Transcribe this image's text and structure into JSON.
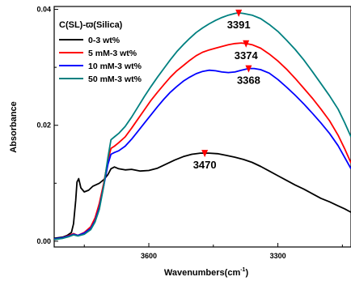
{
  "chart_data": {
    "type": "line",
    "xlabel": "Wavenumbers(cm",
    "xlabel_sup": "-1",
    "xlabel_close": ")",
    "ylabel": "Absorbance",
    "xlim": [
      3820,
      3130
    ],
    "ylim": [
      -0.001,
      0.0405
    ],
    "x_ticks": [
      3600,
      3300
    ],
    "x_tick_labels": [
      "3600",
      "3300"
    ],
    "y_ticks": [
      0.0,
      0.02,
      0.04
    ],
    "y_tick_labels": [
      "0.00",
      "0.02",
      "0.04"
    ],
    "legend_title": "C(SL)-ϖ(Silica)",
    "legend_position": "top-left",
    "series": [
      {
        "name": "0-3 wt%",
        "color": "#000000",
        "points": [
          [
            3820,
            0.0005
          ],
          [
            3800,
            0.0007
          ],
          [
            3790,
            0.001
          ],
          [
            3780,
            0.0015
          ],
          [
            3775,
            0.003
          ],
          [
            3770,
            0.007
          ],
          [
            3767,
            0.0102
          ],
          [
            3763,
            0.0108
          ],
          [
            3758,
            0.0092
          ],
          [
            3750,
            0.0085
          ],
          [
            3740,
            0.0088
          ],
          [
            3730,
            0.0095
          ],
          [
            3715,
            0.01
          ],
          [
            3705,
            0.0106
          ],
          [
            3695,
            0.0115
          ],
          [
            3688,
            0.0125
          ],
          [
            3680,
            0.0128
          ],
          [
            3670,
            0.0125
          ],
          [
            3655,
            0.0123
          ],
          [
            3640,
            0.0124
          ],
          [
            3620,
            0.0121
          ],
          [
            3600,
            0.0122
          ],
          [
            3580,
            0.0126
          ],
          [
            3560,
            0.0133
          ],
          [
            3540,
            0.014
          ],
          [
            3520,
            0.0146
          ],
          [
            3500,
            0.015
          ],
          [
            3480,
            0.0152
          ],
          [
            3460,
            0.0152
          ],
          [
            3440,
            0.0151
          ],
          [
            3420,
            0.0148
          ],
          [
            3400,
            0.0145
          ],
          [
            3380,
            0.0141
          ],
          [
            3360,
            0.0136
          ],
          [
            3340,
            0.0129
          ],
          [
            3320,
            0.0121
          ],
          [
            3300,
            0.0113
          ],
          [
            3280,
            0.0105
          ],
          [
            3260,
            0.0097
          ],
          [
            3240,
            0.009
          ],
          [
            3220,
            0.0082
          ],
          [
            3200,
            0.0074
          ],
          [
            3180,
            0.0068
          ],
          [
            3160,
            0.0061
          ],
          [
            3145,
            0.0056
          ],
          [
            3130,
            0.005
          ]
        ]
      },
      {
        "name": "5 mM-3 wt%",
        "color": "#ff0000",
        "points": [
          [
            3820,
            0.0003
          ],
          [
            3800,
            0.0006
          ],
          [
            3785,
            0.001
          ],
          [
            3775,
            0.0013
          ],
          [
            3765,
            0.001
          ],
          [
            3750,
            0.0015
          ],
          [
            3735,
            0.0025
          ],
          [
            3725,
            0.004
          ],
          [
            3715,
            0.0065
          ],
          [
            3705,
            0.01
          ],
          [
            3695,
            0.014
          ],
          [
            3688,
            0.016
          ],
          [
            3680,
            0.0164
          ],
          [
            3670,
            0.017
          ],
          [
            3655,
            0.018
          ],
          [
            3640,
            0.0195
          ],
          [
            3625,
            0.0211
          ],
          [
            3610,
            0.0227
          ],
          [
            3595,
            0.0243
          ],
          [
            3580,
            0.0257
          ],
          [
            3565,
            0.027
          ],
          [
            3550,
            0.0283
          ],
          [
            3535,
            0.0294
          ],
          [
            3520,
            0.0303
          ],
          [
            3505,
            0.0312
          ],
          [
            3490,
            0.032
          ],
          [
            3475,
            0.0326
          ],
          [
            3460,
            0.033
          ],
          [
            3445,
            0.0333
          ],
          [
            3430,
            0.0336
          ],
          [
            3415,
            0.0339
          ],
          [
            3400,
            0.0341
          ],
          [
            3385,
            0.0342
          ],
          [
            3374,
            0.0341
          ],
          [
            3360,
            0.0339
          ],
          [
            3340,
            0.0333
          ],
          [
            3320,
            0.0323
          ],
          [
            3300,
            0.0311
          ],
          [
            3280,
            0.0297
          ],
          [
            3260,
            0.0281
          ],
          [
            3240,
            0.0264
          ],
          [
            3220,
            0.0247
          ],
          [
            3200,
            0.0228
          ],
          [
            3180,
            0.0208
          ],
          [
            3160,
            0.0183
          ],
          [
            3145,
            0.016
          ],
          [
            3130,
            0.0135
          ]
        ]
      },
      {
        "name": "10 mM-3 wt%",
        "color": "#0000ff",
        "points": [
          [
            3820,
            0.0004
          ],
          [
            3800,
            0.0006
          ],
          [
            3785,
            0.0009
          ],
          [
            3775,
            0.0012
          ],
          [
            3765,
            0.001
          ],
          [
            3750,
            0.0014
          ],
          [
            3735,
            0.0022
          ],
          [
            3725,
            0.0035
          ],
          [
            3715,
            0.0058
          ],
          [
            3705,
            0.0095
          ],
          [
            3695,
            0.0133
          ],
          [
            3688,
            0.015
          ],
          [
            3680,
            0.0153
          ],
          [
            3670,
            0.0156
          ],
          [
            3655,
            0.0164
          ],
          [
            3640,
            0.0176
          ],
          [
            3625,
            0.019
          ],
          [
            3610,
            0.0204
          ],
          [
            3595,
            0.0218
          ],
          [
            3580,
            0.0232
          ],
          [
            3565,
            0.0245
          ],
          [
            3550,
            0.0257
          ],
          [
            3535,
            0.0267
          ],
          [
            3520,
            0.0276
          ],
          [
            3505,
            0.0283
          ],
          [
            3490,
            0.0289
          ],
          [
            3475,
            0.0293
          ],
          [
            3460,
            0.0295
          ],
          [
            3445,
            0.0294
          ],
          [
            3430,
            0.0292
          ],
          [
            3415,
            0.0291
          ],
          [
            3400,
            0.0292
          ],
          [
            3385,
            0.0295
          ],
          [
            3368,
            0.0298
          ],
          [
            3355,
            0.0298
          ],
          [
            3340,
            0.0296
          ],
          [
            3320,
            0.029
          ],
          [
            3300,
            0.0279
          ],
          [
            3280,
            0.0266
          ],
          [
            3260,
            0.0252
          ],
          [
            3240,
            0.0237
          ],
          [
            3220,
            0.0221
          ],
          [
            3200,
            0.0204
          ],
          [
            3180,
            0.0186
          ],
          [
            3160,
            0.0165
          ],
          [
            3145,
            0.0145
          ],
          [
            3130,
            0.0125
          ]
        ]
      },
      {
        "name": "50 mM-3 wt%",
        "color": "#008080",
        "points": [
          [
            3820,
            0.0003
          ],
          [
            3800,
            0.0005
          ],
          [
            3785,
            0.0008
          ],
          [
            3775,
            0.0011
          ],
          [
            3765,
            0.0009
          ],
          [
            3750,
            0.0012
          ],
          [
            3735,
            0.002
          ],
          [
            3725,
            0.0033
          ],
          [
            3715,
            0.0055
          ],
          [
            3705,
            0.0095
          ],
          [
            3695,
            0.0145
          ],
          [
            3688,
            0.0175
          ],
          [
            3680,
            0.018
          ],
          [
            3670,
            0.0186
          ],
          [
            3655,
            0.0198
          ],
          [
            3640,
            0.0214
          ],
          [
            3625,
            0.0232
          ],
          [
            3610,
            0.025
          ],
          [
            3595,
            0.0267
          ],
          [
            3580,
            0.0283
          ],
          [
            3565,
            0.0298
          ],
          [
            3550,
            0.0313
          ],
          [
            3535,
            0.0327
          ],
          [
            3520,
            0.0339
          ],
          [
            3505,
            0.035
          ],
          [
            3490,
            0.036
          ],
          [
            3475,
            0.0368
          ],
          [
            3460,
            0.0375
          ],
          [
            3445,
            0.0381
          ],
          [
            3430,
            0.0386
          ],
          [
            3415,
            0.039
          ],
          [
            3400,
            0.0393
          ],
          [
            3391,
            0.0394
          ],
          [
            3380,
            0.0393
          ],
          [
            3360,
            0.039
          ],
          [
            3340,
            0.0384
          ],
          [
            3320,
            0.0374
          ],
          [
            3300,
            0.0362
          ],
          [
            3280,
            0.0347
          ],
          [
            3260,
            0.0331
          ],
          [
            3240,
            0.0313
          ],
          [
            3220,
            0.0293
          ],
          [
            3200,
            0.0272
          ],
          [
            3180,
            0.0251
          ],
          [
            3160,
            0.0228
          ],
          [
            3145,
            0.0205
          ],
          [
            3130,
            0.018
          ]
        ]
      }
    ],
    "annotations": [
      {
        "text": "3391",
        "x": 3391,
        "y": 0.0394,
        "color": "#ff0000"
      },
      {
        "text": "3374",
        "x": 3374,
        "y": 0.0341,
        "color": "#ff0000"
      },
      {
        "text": "3368",
        "x": 3368,
        "y": 0.0298,
        "color": "#ff0000"
      },
      {
        "text": "3470",
        "x": 3470,
        "y": 0.0152,
        "color": "#ff0000"
      }
    ]
  }
}
